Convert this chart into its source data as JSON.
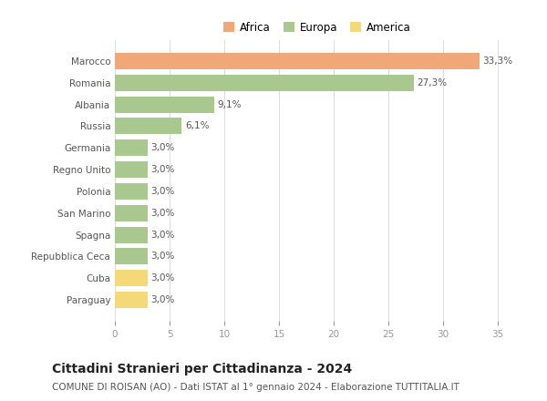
{
  "categories": [
    "Marocco",
    "Romania",
    "Albania",
    "Russia",
    "Germania",
    "Regno Unito",
    "Polonia",
    "San Marino",
    "Spagna",
    "Repubblica Ceca",
    "Cuba",
    "Paraguay"
  ],
  "values": [
    33.3,
    27.3,
    9.1,
    6.1,
    3.0,
    3.0,
    3.0,
    3.0,
    3.0,
    3.0,
    3.0,
    3.0
  ],
  "labels": [
    "33,3%",
    "27,3%",
    "9,1%",
    "6,1%",
    "3,0%",
    "3,0%",
    "3,0%",
    "3,0%",
    "3,0%",
    "3,0%",
    "3,0%",
    "3,0%"
  ],
  "colors": [
    "#F0A878",
    "#A8C890",
    "#A8C890",
    "#A8C890",
    "#A8C890",
    "#A8C890",
    "#A8C890",
    "#A8C890",
    "#A8C890",
    "#A8C890",
    "#F5D878",
    "#F5D878"
  ],
  "legend": [
    {
      "label": "Africa",
      "color": "#F0A878"
    },
    {
      "label": "Europa",
      "color": "#A8C890"
    },
    {
      "label": "America",
      "color": "#F5D878"
    }
  ],
  "xlim": [
    0,
    37
  ],
  "xticks": [
    0,
    5,
    10,
    15,
    20,
    25,
    30,
    35
  ],
  "title": "Cittadini Stranieri per Cittadinanza - 2024",
  "subtitle": "COMUNE DI ROISAN (AO) - Dati ISTAT al 1° gennaio 2024 - Elaborazione TUTTITALIA.IT",
  "title_fontsize": 10,
  "subtitle_fontsize": 7.5,
  "background_color": "#ffffff",
  "grid_color": "#dddddd",
  "bar_height": 0.75,
  "label_fontsize": 7.5,
  "tick_fontsize": 7.5,
  "category_fontsize": 7.5
}
